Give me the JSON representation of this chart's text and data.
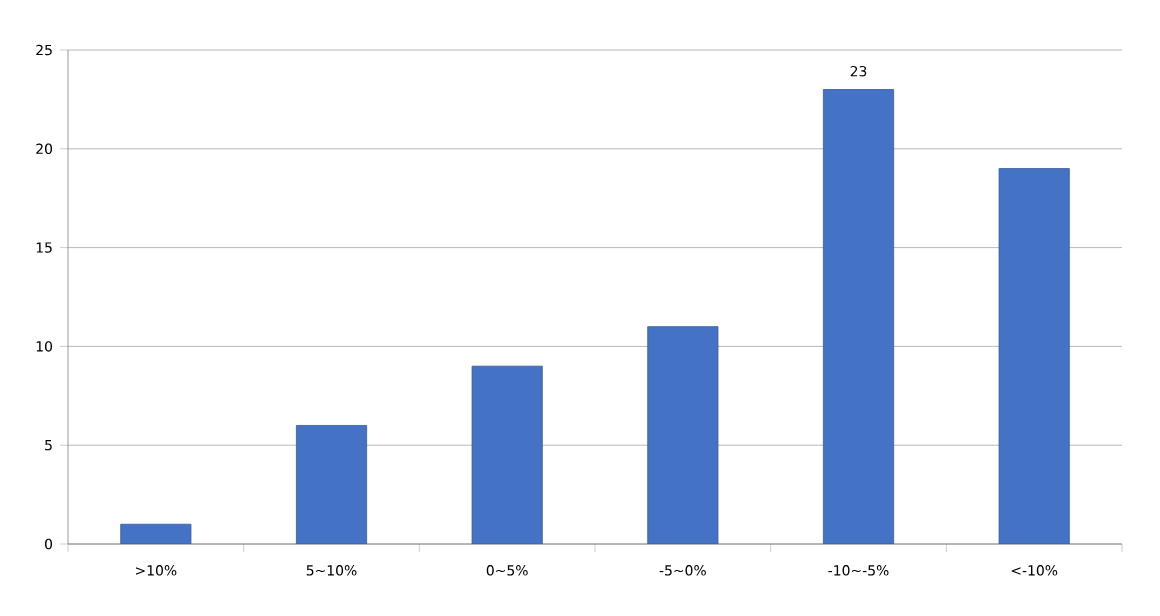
{
  "chart_data": {
    "type": "bar",
    "categories": [
      ">10%",
      "5~10%",
      "0~5%",
      "-5~0%",
      "-10~-5%",
      "<-10%"
    ],
    "values": [
      1,
      6,
      9,
      11,
      23,
      19
    ],
    "value_labels": [
      null,
      null,
      null,
      null,
      "23",
      null
    ],
    "color": "#4472c4",
    "ylim": [
      0,
      25
    ],
    "yticks": [
      0,
      5,
      10,
      15,
      20,
      25
    ],
    "grid": "y"
  }
}
